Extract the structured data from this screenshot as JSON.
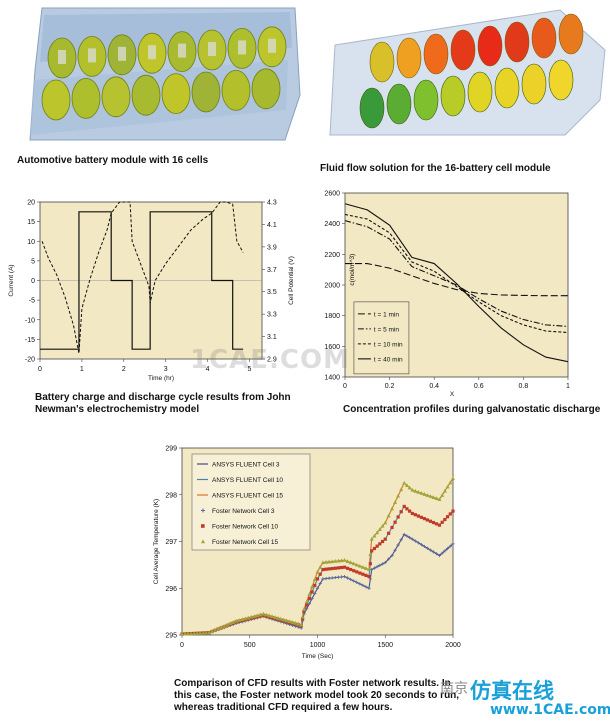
{
  "captions": {
    "module_left": "Automotive battery module with 16 cells",
    "module_right": "Fluid flow solution for the 16-battery cell module",
    "cycle_line1": "Battery charge and discharge cycle results from John",
    "cycle_line2": "Newman's electrochemistry model",
    "conc": "Concentration profiles during galvanostatic discharge",
    "cfd_line1": "Comparison of CFD results with Foster network results. In",
    "cfd_line2": "this case, the Foster network model took 20 seconds to run,",
    "cfd_line3": "whereas traditional CFD required a few hours."
  },
  "watermarks": {
    "center": "1CAE.COM",
    "brand": "仿真在线",
    "site": "www.1CAE.com",
    "cn": "南京"
  },
  "chart_data": [
    {
      "type": "line",
      "id": "cycle",
      "xlabel": "Time (hr)",
      "ylabel": "Current (A)",
      "y2label": "Cell Potential (V)",
      "xlim": [
        0,
        5.3
      ],
      "ylim": [
        -20,
        20
      ],
      "y2lim": [
        2.9,
        4.3
      ],
      "xticks": [
        "0",
        "1",
        "2",
        "3",
        "4",
        "5"
      ],
      "yticks": [
        "20",
        "15",
        "10",
        "5",
        "0",
        "-5",
        "-10",
        "-15",
        "-20"
      ],
      "y2ticks": [
        "4.3",
        "4.1",
        "3.9",
        "3.7",
        "3.5",
        "3.3",
        "3.1",
        "2.9"
      ],
      "series": [
        {
          "style": "solid",
          "x": [
            0,
            0.93,
            0.93,
            1.7,
            1.7,
            2.2,
            2.2,
            2.63,
            2.63,
            4.1,
            4.1,
            4.6,
            4.6,
            4.85
          ],
          "y": [
            -17.5,
            -17.5,
            17.5,
            17.5,
            0,
            0,
            -17.5,
            -17.5,
            17.5,
            17.5,
            0,
            0,
            -17.5,
            -17.5
          ]
        },
        {
          "style": "dashed",
          "x": [
            0.05,
            0.2,
            0.4,
            0.6,
            0.8,
            0.93,
            1.0,
            1.2,
            1.4,
            1.6,
            1.7,
            1.9,
            2.0,
            2.15,
            2.2,
            2.35,
            2.6,
            2.63,
            2.75,
            3.0,
            3.3,
            3.6,
            3.9,
            4.1,
            4.3,
            4.45,
            4.6,
            4.7,
            4.85
          ],
          "y": [
            3.95,
            3.8,
            3.65,
            3.45,
            3.2,
            2.95,
            3.35,
            3.62,
            3.85,
            4.05,
            4.2,
            4.3,
            4.3,
            4.3,
            3.95,
            3.8,
            3.55,
            3.4,
            3.6,
            3.75,
            3.9,
            4.05,
            4.15,
            4.2,
            4.3,
            4.3,
            4.28,
            3.95,
            3.85
          ]
        }
      ]
    },
    {
      "type": "line",
      "id": "concentration",
      "xlabel": "X",
      "ylabel": "c(mol/m^3)",
      "xlim": [
        0,
        1
      ],
      "ylim": [
        1400,
        2600
      ],
      "xticks": [
        "0",
        "0.2",
        "0.4",
        "0.6",
        "0.8",
        "1"
      ],
      "yticks": [
        "2600",
        "2400",
        "2200",
        "2000",
        "1800",
        "1600",
        "1400"
      ],
      "legend": "bottom-left",
      "series": [
        {
          "name": "t = 1 min",
          "style": "dashed-long",
          "x": [
            0,
            0.1,
            0.2,
            0.3,
            0.4,
            0.5,
            0.6,
            0.7,
            0.8,
            0.9,
            1.0
          ],
          "y": [
            2140,
            2140,
            2110,
            2060,
            2010,
            1970,
            1945,
            1935,
            1932,
            1930,
            1930
          ]
        },
        {
          "name": "t = 5 min",
          "style": "dashdot",
          "x": [
            0,
            0.1,
            0.2,
            0.3,
            0.4,
            0.5,
            0.6,
            0.7,
            0.8,
            0.9,
            1.0
          ],
          "y": [
            2420,
            2380,
            2300,
            2120,
            2060,
            2000,
            1910,
            1830,
            1775,
            1740,
            1730
          ]
        },
        {
          "name": "t = 10 min",
          "style": "dashed",
          "x": [
            0,
            0.1,
            0.2,
            0.3,
            0.4,
            0.5,
            0.6,
            0.7,
            0.8,
            0.9,
            1.0
          ],
          "y": [
            2460,
            2430,
            2340,
            2150,
            2090,
            1990,
            1890,
            1800,
            1740,
            1700,
            1690
          ]
        },
        {
          "name": "t = 40 min",
          "style": "solid",
          "x": [
            0,
            0.1,
            0.2,
            0.3,
            0.4,
            0.5,
            0.6,
            0.7,
            0.8,
            0.9,
            1.0
          ],
          "y": [
            2530,
            2490,
            2390,
            2180,
            2140,
            2010,
            1860,
            1720,
            1610,
            1530,
            1500
          ]
        }
      ]
    },
    {
      "type": "line",
      "id": "temperature",
      "xlabel": "Time (Sec)",
      "ylabel": "Cell Average Temperature (K)",
      "xlim": [
        0,
        2000
      ],
      "ylim": [
        295,
        299
      ],
      "xticks": [
        "0",
        "500",
        "1000",
        "1500",
        "2000"
      ],
      "yticks": [
        "299",
        "298",
        "297",
        "296",
        "295"
      ],
      "legend": "top-left",
      "series": [
        {
          "name": "ANSYS FLUENT Cell 3",
          "color": "#4a4a8c",
          "marker": "line",
          "x": [
            0,
            200,
            400,
            600,
            880,
            900,
            1000,
            1040,
            1200,
            1380,
            1400,
            1500,
            1550,
            1640,
            1700,
            1900,
            2000
          ],
          "y": [
            295.02,
            295.05,
            295.25,
            295.4,
            295.15,
            295.45,
            296.0,
            296.2,
            296.25,
            296.0,
            296.4,
            296.55,
            296.7,
            297.15,
            297.05,
            296.7,
            296.95
          ]
        },
        {
          "name": "ANSYS FLUENT Cell 10",
          "color": "#4a7fb0",
          "marker": "line",
          "x": [
            0,
            200,
            400,
            600,
            880,
            900,
            1000,
            1040,
            1200,
            1380,
            1400,
            1500,
            1550,
            1640,
            1700,
            1900,
            2000
          ],
          "y": [
            295.02,
            295.05,
            295.28,
            295.42,
            295.2,
            295.5,
            296.2,
            296.4,
            296.45,
            296.25,
            296.8,
            297.05,
            297.3,
            297.75,
            297.6,
            297.35,
            297.65
          ]
        },
        {
          "name": "ANSYS FLUENT Cell 15",
          "color": "#e07020",
          "marker": "line",
          "x": [
            0,
            200,
            400,
            600,
            880,
            900,
            1000,
            1040,
            1200,
            1380,
            1400,
            1500,
            1550,
            1640,
            1700,
            1900,
            2000
          ],
          "y": [
            295.02,
            295.05,
            295.3,
            295.45,
            295.22,
            295.55,
            296.35,
            296.55,
            296.6,
            296.4,
            297.05,
            297.4,
            297.7,
            298.25,
            298.1,
            297.9,
            298.35
          ]
        },
        {
          "name": "Foster Network Cell 3",
          "color": "#5a6aa0",
          "marker": "plus",
          "x": [
            0,
            200,
            400,
            600,
            880,
            900,
            1000,
            1040,
            1200,
            1380,
            1400,
            1500,
            1550,
            1640,
            1700,
            1900,
            2000
          ],
          "y": [
            295.02,
            295.05,
            295.25,
            295.4,
            295.15,
            295.45,
            296.0,
            296.2,
            296.25,
            296.0,
            296.4,
            296.55,
            296.7,
            297.15,
            297.05,
            296.7,
            296.95
          ]
        },
        {
          "name": "Foster Network Cell 10",
          "color": "#c0392b",
          "marker": "square",
          "x": [
            0,
            200,
            400,
            600,
            880,
            900,
            1000,
            1040,
            1200,
            1380,
            1400,
            1500,
            1550,
            1640,
            1700,
            1900,
            2000
          ],
          "y": [
            295.02,
            295.05,
            295.28,
            295.42,
            295.2,
            295.5,
            296.2,
            296.4,
            296.45,
            296.25,
            296.8,
            297.05,
            297.3,
            297.75,
            297.6,
            297.35,
            297.65
          ]
        },
        {
          "name": "Foster Network Cell 15",
          "color": "#9aaa3a",
          "marker": "triangle",
          "x": [
            0,
            200,
            400,
            600,
            880,
            900,
            1000,
            1040,
            1200,
            1380,
            1400,
            1500,
            1550,
            1640,
            1700,
            1900,
            2000
          ],
          "y": [
            295.02,
            295.05,
            295.3,
            295.45,
            295.22,
            295.55,
            296.35,
            296.55,
            296.6,
            296.4,
            297.05,
            297.4,
            297.7,
            298.25,
            298.1,
            297.9,
            298.35
          ]
        }
      ]
    }
  ]
}
